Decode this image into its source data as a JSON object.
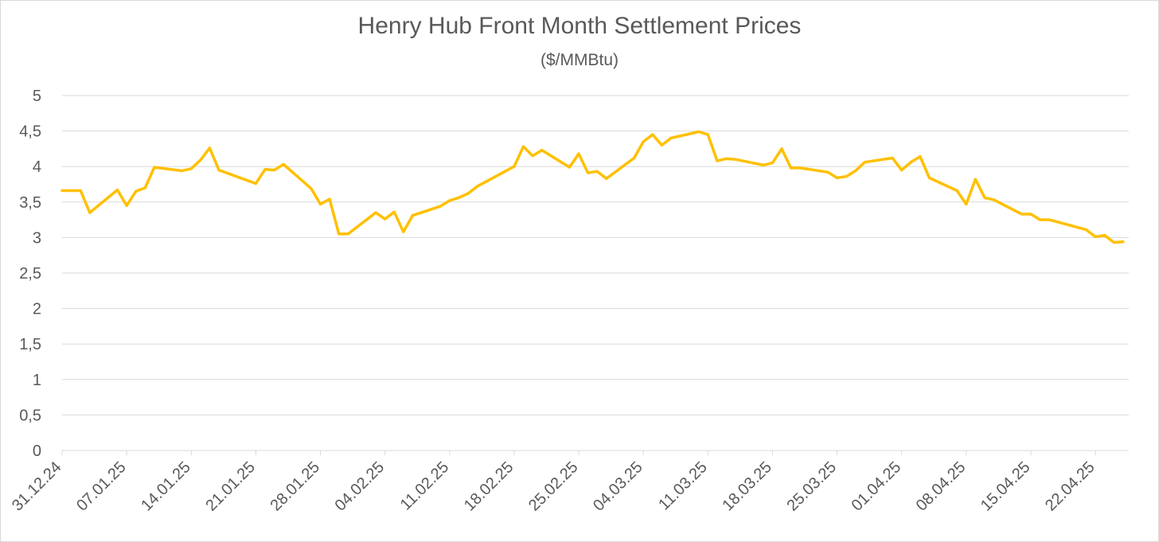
{
  "chart_data": {
    "type": "line",
    "title": "Henry Hub Front Month Settlement Prices",
    "subtitle": "($/MMBtu)",
    "xlabel": "",
    "ylabel": "",
    "ylim": [
      0,
      5
    ],
    "grid": true,
    "y_ticks": [
      "0",
      "0,5",
      "1",
      "1,5",
      "2",
      "2,5",
      "3",
      "3,5",
      "4",
      "4,5",
      "5"
    ],
    "x_ticks": [
      "31.12.24",
      "07.01.25",
      "14.01.25",
      "21.01.25",
      "28.01.25",
      "04.02.25",
      "11.02.25",
      "18.02.25",
      "25.02.25",
      "04.03.25",
      "11.03.25",
      "18.03.25",
      "25.03.25",
      "01.04.25",
      "08.04.25",
      "15.04.25",
      "22.04.25"
    ],
    "colors": {
      "line": "#ffc000",
      "grid": "#d9d9d9",
      "text": "#595959"
    },
    "series": [
      {
        "x": [
          "31.12.24",
          "02.01.25",
          "03.01.25",
          "06.01.25",
          "07.01.25",
          "08.01.25",
          "09.01.25",
          "10.01.25",
          "13.01.25",
          "14.01.25",
          "15.01.25",
          "16.01.25",
          "17.01.25",
          "21.01.25",
          "22.01.25",
          "23.01.25",
          "24.01.25",
          "27.01.25",
          "28.01.25",
          "29.01.25",
          "30.01.25",
          "31.01.25",
          "03.02.25",
          "04.02.25",
          "05.02.25",
          "06.02.25",
          "07.02.25",
          "10.02.25",
          "11.02.25",
          "12.02.25",
          "13.02.25",
          "14.02.25",
          "18.02.25",
          "19.02.25",
          "20.02.25",
          "21.02.25",
          "24.02.25",
          "25.02.25",
          "26.02.25",
          "27.02.25",
          "28.02.25",
          "03.03.25",
          "04.03.25",
          "05.03.25",
          "06.03.25",
          "07.03.25",
          "10.03.25",
          "11.03.25",
          "12.03.25",
          "13.03.25",
          "14.03.25",
          "17.03.25",
          "18.03.25",
          "19.03.25",
          "20.03.25",
          "21.03.25",
          "24.03.25",
          "25.03.25",
          "26.03.25",
          "27.03.25",
          "28.03.25",
          "31.03.25",
          "01.04.25",
          "02.04.25",
          "03.04.25",
          "04.04.25",
          "07.04.25",
          "08.04.25",
          "09.04.25",
          "10.04.25",
          "11.04.25",
          "14.04.25",
          "15.04.25",
          "16.04.25",
          "17.04.25",
          "21.04.25",
          "22.04.25",
          "23.04.25",
          "24.04.25",
          "25.04.25"
        ],
        "values": [
          3.66,
          3.66,
          3.35,
          3.67,
          3.45,
          3.65,
          3.7,
          3.99,
          3.94,
          3.97,
          4.09,
          4.26,
          3.95,
          3.76,
          3.96,
          3.95,
          4.03,
          3.69,
          3.47,
          3.54,
          3.05,
          3.05,
          3.35,
          3.26,
          3.36,
          3.08,
          3.31,
          3.44,
          3.52,
          3.56,
          3.62,
          3.72,
          4.0,
          4.28,
          4.15,
          4.23,
          3.99,
          4.18,
          3.91,
          3.93,
          3.83,
          4.12,
          4.35,
          4.45,
          4.3,
          4.4,
          4.49,
          4.45,
          4.08,
          4.11,
          4.1,
          4.02,
          4.05,
          4.25,
          3.98,
          3.98,
          3.92,
          3.84,
          3.86,
          3.94,
          4.06,
          4.12,
          3.95,
          4.06,
          4.14,
          3.84,
          3.66,
          3.47,
          3.82,
          3.56,
          3.53,
          3.33,
          3.33,
          3.25,
          3.25,
          3.11,
          3.01,
          3.03,
          2.93,
          2.94
        ]
      }
    ]
  }
}
